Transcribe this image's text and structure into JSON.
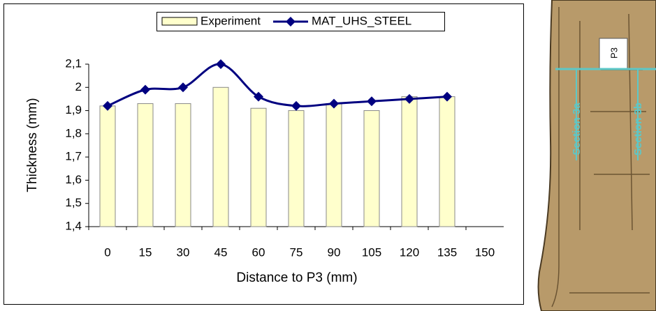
{
  "chart_data": {
    "type": "bar_line",
    "xlabel": "Distance to P3 (mm)",
    "ylabel": "Thickness (mm)",
    "categories": [
      "0",
      "15",
      "30",
      "45",
      "60",
      "75",
      "90",
      "105",
      "120",
      "135",
      "150"
    ],
    "series": [
      {
        "name": "Experiment",
        "type": "bar",
        "color": "#ffffcc",
        "values": [
          1.92,
          1.93,
          1.93,
          2.0,
          1.91,
          1.9,
          1.93,
          1.9,
          1.96,
          1.96,
          null
        ]
      },
      {
        "name": "MAT_UHS_STEEL",
        "type": "line",
        "color": "#000080",
        "values": [
          1.92,
          1.99,
          2.0,
          2.1,
          1.96,
          1.92,
          1.93,
          1.94,
          1.95,
          1.96,
          null
        ]
      }
    ],
    "ylim": [
      1.4,
      2.1
    ],
    "yticks": [
      {
        "value": 1.4,
        "label": "1,4"
      },
      {
        "value": 1.5,
        "label": "1,5"
      },
      {
        "value": 1.6,
        "label": "1,6"
      },
      {
        "value": 1.7,
        "label": "1,7"
      },
      {
        "value": 1.8,
        "label": "1,8"
      },
      {
        "value": 1.9,
        "label": "1,9"
      },
      2,
      {
        "value": 2.1,
        "label": "2,1"
      }
    ],
    "grid": false,
    "legend": "top"
  },
  "figure": {
    "labels": [
      "P3",
      "Section 3a",
      "Section 3b"
    ]
  }
}
